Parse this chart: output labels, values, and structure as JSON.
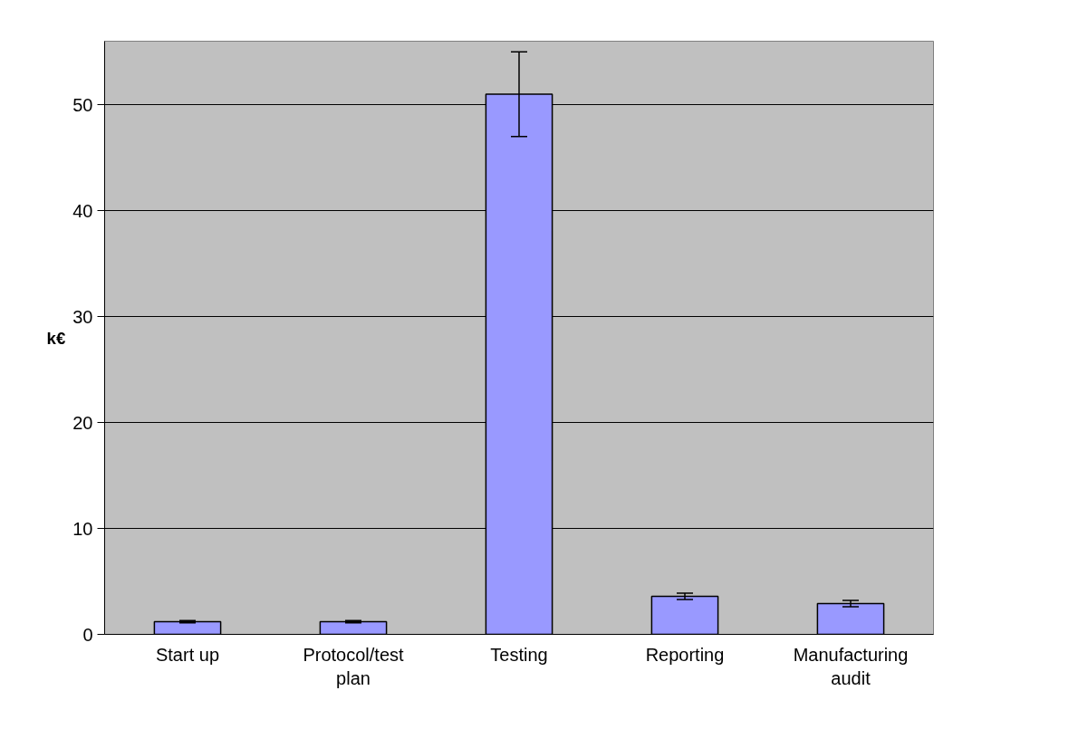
{
  "chart_data": {
    "type": "bar",
    "categories": [
      "Start up",
      "Protocol/test\nplan",
      "Testing",
      "Reporting",
      "Manufacturing\naudit"
    ],
    "values": [
      1.2,
      1.2,
      51,
      3.6,
      2.9
    ],
    "errors": [
      0.1,
      0.1,
      4,
      0.3,
      0.3
    ],
    "color": "#9999ff",
    "ylabel": "k€",
    "ylim": [
      0,
      56
    ],
    "yticks": [
      0,
      10,
      20,
      30,
      40,
      50
    ],
    "grid": "y"
  }
}
